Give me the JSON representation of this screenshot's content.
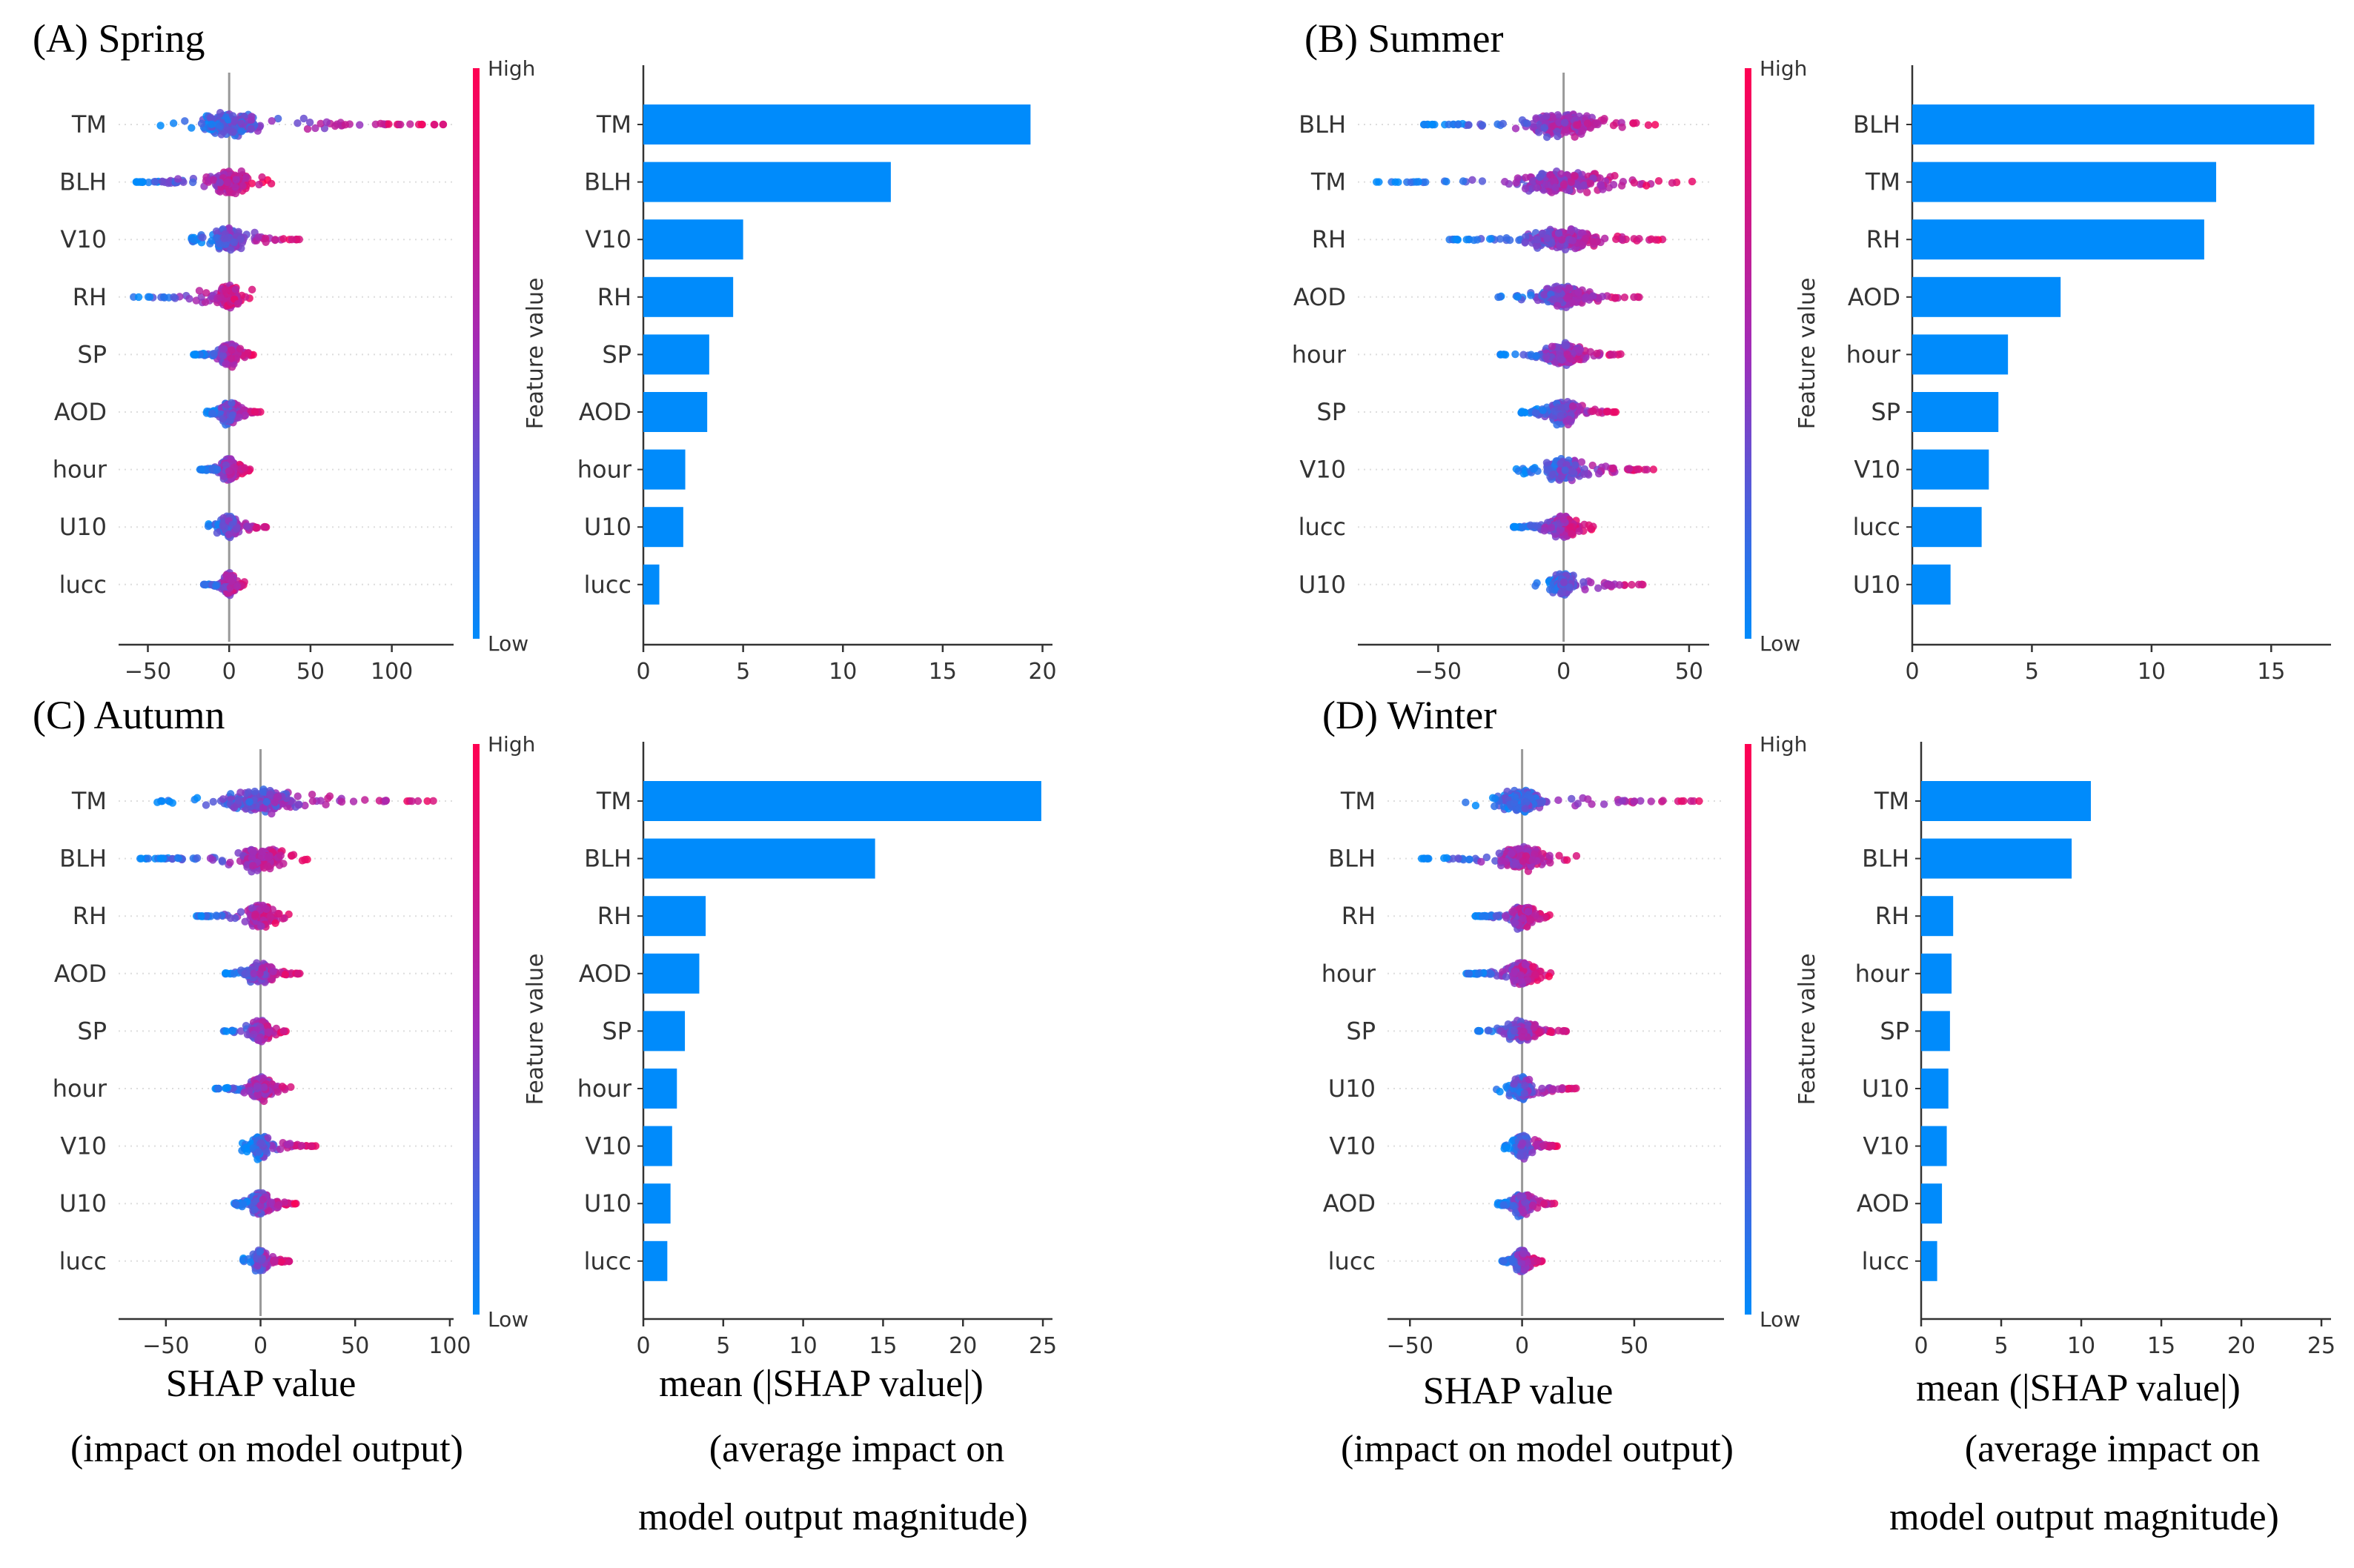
{
  "colors": {
    "low": "#008BFB",
    "high": "#FF0052",
    "mid": "#A02DB9",
    "bar": "#008BFB",
    "axis": "#333333",
    "grid": "#cccccc"
  },
  "text": {
    "feature_value": "Feature value",
    "high": "High",
    "low": "Low",
    "shap_xlabel_1": "SHAP value",
    "shap_xlabel_2": "(impact on model output)",
    "bar_xlabel_1": "mean (|SHAP value|)",
    "bar_xlabel_2": "(average impact on",
    "bar_xlabel_3": "model output magnitude)"
  },
  "chart_data": [
    {
      "panel": "A",
      "title": "(A) Spring",
      "type": "scatter",
      "features": [
        "TM",
        "BLH",
        "V10",
        "RH",
        "SP",
        "AOD",
        "hour",
        "U10",
        "lucc"
      ],
      "xticks": [
        -50,
        0,
        50,
        100
      ],
      "xlim": [
        -68,
        138
      ],
      "spread": [
        [
          -47,
          132
        ],
        [
          -58,
          26
        ],
        [
          -25,
          44
        ],
        [
          -60,
          16
        ],
        [
          -22,
          17
        ],
        [
          -14,
          20
        ],
        [
          -18,
          13
        ],
        [
          -14,
          24
        ],
        [
          -16,
          10
        ]
      ],
      "bar": {
        "type": "bar",
        "features": [
          "TM",
          "BLH",
          "V10",
          "RH",
          "SP",
          "AOD",
          "hour",
          "U10",
          "lucc"
        ],
        "values": [
          19.4,
          12.4,
          5.0,
          4.5,
          3.3,
          3.2,
          2.1,
          2.0,
          0.8
        ],
        "xticks": [
          0,
          5,
          10,
          15,
          20
        ],
        "xlim": [
          0,
          20.5
        ]
      }
    },
    {
      "panel": "B",
      "title": "(B) Summer",
      "type": "scatter",
      "features": [
        "BLH",
        "TM",
        "RH",
        "AOD",
        "hour",
        "SP",
        "V10",
        "lucc",
        "U10"
      ],
      "xticks": [
        -50,
        0,
        50
      ],
      "xlim": [
        -82,
        58
      ],
      "spread": [
        [
          -56,
          42
        ],
        [
          -75,
          54
        ],
        [
          -47,
          40
        ],
        [
          -27,
          32
        ],
        [
          -26,
          24
        ],
        [
          -17,
          23
        ],
        [
          -19,
          37
        ],
        [
          -21,
          12
        ],
        [
          -12,
          33
        ]
      ],
      "bar": {
        "type": "bar",
        "features": [
          "BLH",
          "TM",
          "RH",
          "AOD",
          "hour",
          "SP",
          "V10",
          "lucc",
          "U10"
        ],
        "values": [
          16.8,
          12.7,
          12.2,
          6.2,
          4.0,
          3.6,
          3.2,
          2.9,
          1.6
        ],
        "xticks": [
          0,
          5,
          10,
          15
        ],
        "xlim": [
          0,
          17.5
        ]
      }
    },
    {
      "panel": "C",
      "title": "(C) Autumn",
      "type": "scatter",
      "features": [
        "TM",
        "BLH",
        "RH",
        "AOD",
        "SP",
        "hour",
        "V10",
        "U10",
        "lucc"
      ],
      "xticks": [
        -50,
        0,
        50,
        100
      ],
      "xlim": [
        -75,
        102
      ],
      "spread": [
        [
          -55,
          95
        ],
        [
          -64,
          30
        ],
        [
          -34,
          16
        ],
        [
          -20,
          21
        ],
        [
          -20,
          15
        ],
        [
          -24,
          17
        ],
        [
          -10,
          30
        ],
        [
          -14,
          19
        ],
        [
          -10,
          16
        ]
      ],
      "bar": {
        "type": "bar",
        "features": [
          "TM",
          "BLH",
          "RH",
          "AOD",
          "SP",
          "hour",
          "V10",
          "U10",
          "lucc"
        ],
        "values": [
          24.9,
          14.5,
          3.9,
          3.5,
          2.6,
          2.1,
          1.8,
          1.7,
          1.5
        ],
        "xticks": [
          0,
          5,
          10,
          15,
          20,
          25
        ],
        "xlim": [
          0,
          25.6
        ]
      }
    },
    {
      "panel": "D",
      "title": "(D) Winter",
      "type": "scatter",
      "features": [
        "TM",
        "BLH",
        "RH",
        "hour",
        "SP",
        "U10",
        "V10",
        "AOD",
        "lucc"
      ],
      "xticks": [
        -50,
        0,
        50
      ],
      "xlim": [
        -60,
        90
      ],
      "spread": [
        [
          -27,
          84
        ],
        [
          -45,
          26
        ],
        [
          -21,
          13
        ],
        [
          -25,
          13
        ],
        [
          -21,
          21
        ],
        [
          -12,
          25
        ],
        [
          -8,
          17
        ],
        [
          -11,
          15
        ],
        [
          -9,
          9
        ]
      ],
      "bar": {
        "type": "bar",
        "features": [
          "TM",
          "BLH",
          "RH",
          "hour",
          "SP",
          "U10",
          "V10",
          "AOD",
          "lucc"
        ],
        "values": [
          10.6,
          9.4,
          2.0,
          1.9,
          1.8,
          1.7,
          1.6,
          1.3,
          1.0
        ],
        "xticks": [
          0,
          5,
          10,
          15,
          20,
          25
        ],
        "xlim": [
          0,
          25.6
        ]
      }
    }
  ]
}
